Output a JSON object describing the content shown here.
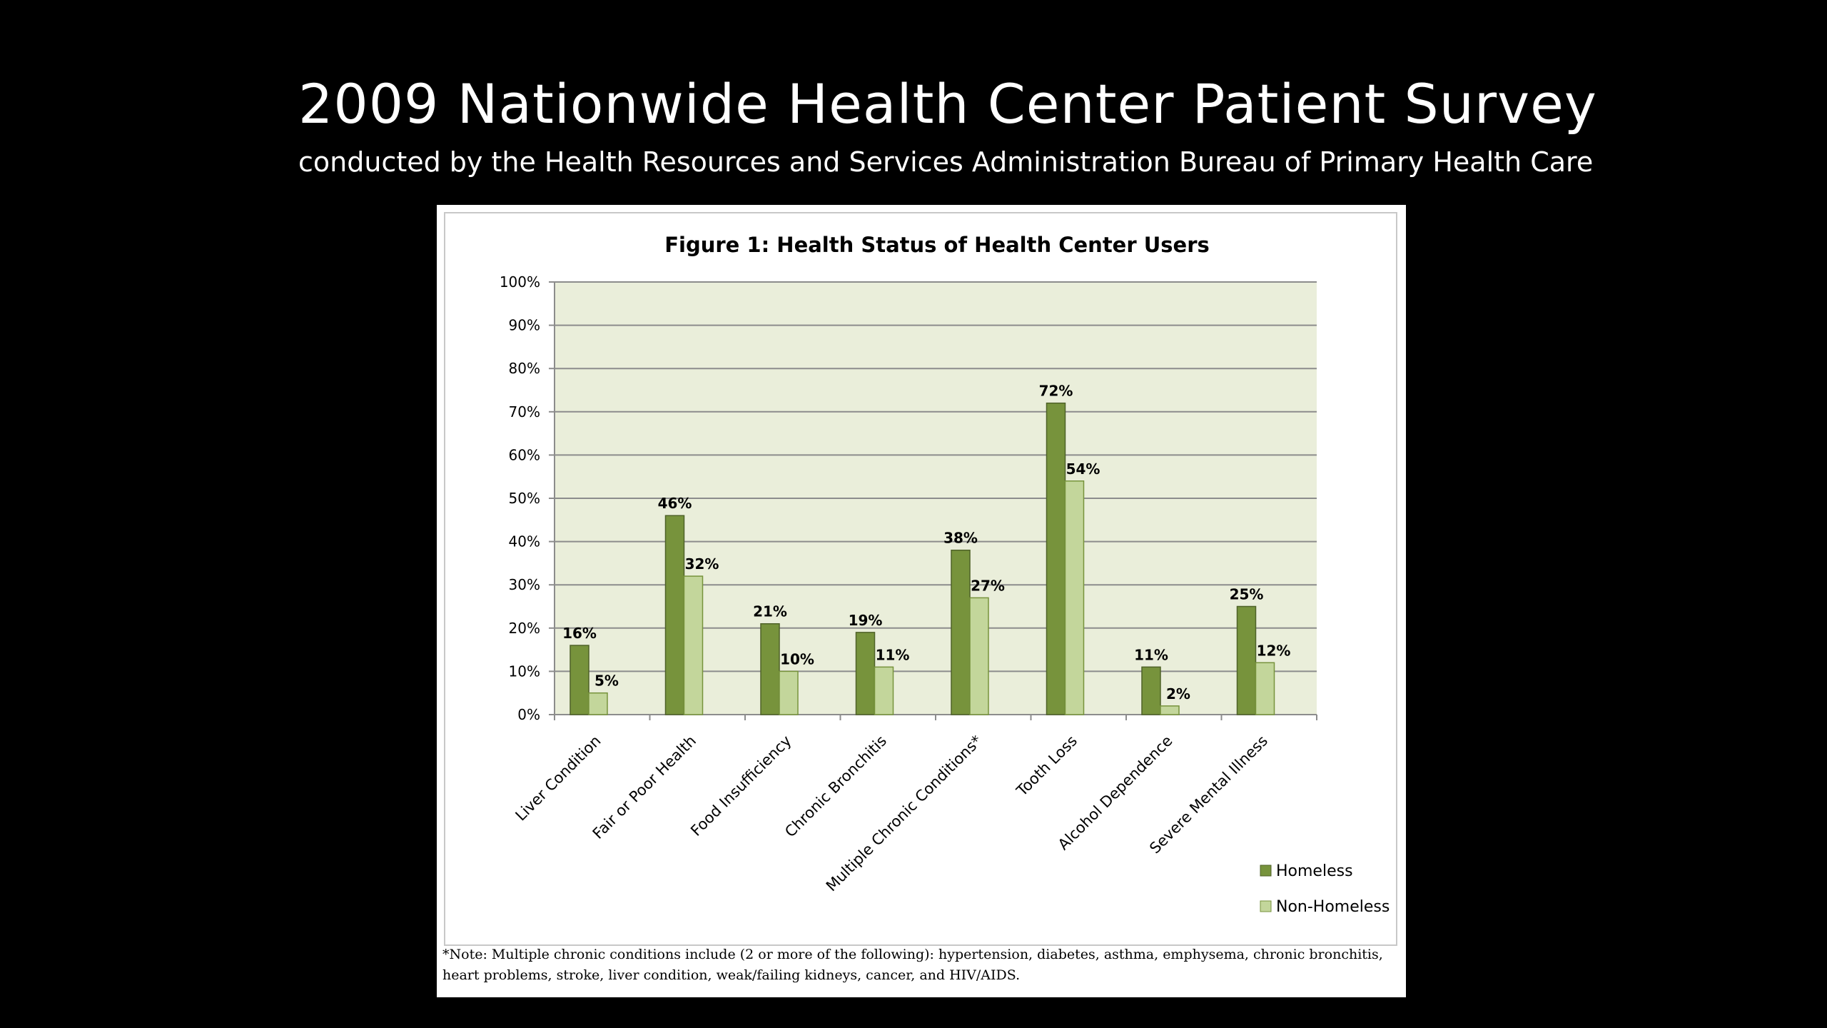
{
  "slide": {
    "title": "2009 Nationwide Health Center Patient Survey",
    "subtitle": "conducted by the Health Resources and Services Administration Bureau of Primary Health Care"
  },
  "chart_data": {
    "type": "bar",
    "title": "Figure 1: Health Status of Health Center Users",
    "categories": [
      "Liver Condition",
      "Fair or Poor Health",
      "Food Insufficiency",
      "Chronic Bronchitis",
      "Multiple Chronic Conditions*",
      "Tooth Loss",
      "Alcohol Dependence",
      "Severe Mental Illness"
    ],
    "series": [
      {
        "name": "Homeless",
        "values": [
          16,
          46,
          21,
          19,
          38,
          72,
          11,
          25
        ],
        "labels": [
          "16%",
          "46%",
          "21%",
          "19%",
          "38%",
          "72%",
          "11%",
          "25%"
        ],
        "color": "#77933c",
        "stroke": "#4f6228"
      },
      {
        "name": "Non-Homeless",
        "values": [
          5,
          32,
          10,
          11,
          27,
          54,
          2,
          12
        ],
        "labels": [
          "5%",
          "32%",
          "10%",
          "11%",
          "27%",
          "54%",
          "2%",
          "12%"
        ],
        "color": "#c3d69b",
        "stroke": "#77933c"
      }
    ],
    "yticks": [
      "0%",
      "10%",
      "20%",
      "30%",
      "40%",
      "50%",
      "60%",
      "70%",
      "80%",
      "90%",
      "100%"
    ],
    "ylim": [
      0,
      100
    ],
    "grid": true,
    "legend_position": "bottom-right",
    "plot_background": "#eaeeda",
    "xlabel": "",
    "ylabel": "",
    "note": "*Note: Multiple chronic conditions include (2 or more of the following): hypertension, diabetes, asthma, emphysema, chronic bronchitis, heart problems, stroke, liver condition, weak/failing kidneys, cancer, and HIV/AIDS."
  }
}
